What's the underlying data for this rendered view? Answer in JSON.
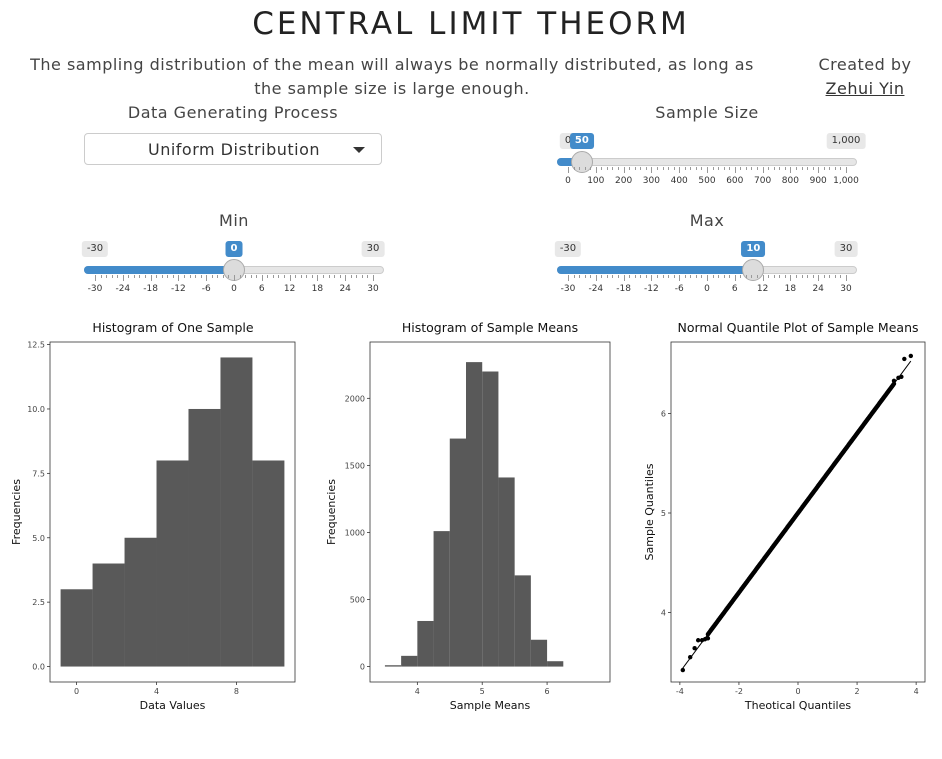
{
  "header": {
    "title": "CENTRAL LIMIT THEORM",
    "subtitle": "The sampling distribution of the mean will always be normally distributed, as long as the sample size is large enough.",
    "created_by": "Created by",
    "author": "Zehui Yin"
  },
  "controls": {
    "dgp_label": "Data Generating Process",
    "dgp_value": "Uniform Distribution",
    "sample_size": {
      "label": "Sample Size",
      "min": 0,
      "max": 1000,
      "value": 50,
      "min_label": "0",
      "max_label": "1,000",
      "value_label": "50",
      "ticks": [
        "0",
        "100",
        "200",
        "300",
        "400",
        "500",
        "600",
        "700",
        "800",
        "900",
        "1,000"
      ]
    },
    "min": {
      "label": "Min",
      "min": -30,
      "max": 30,
      "value": 0,
      "min_label": "-30",
      "max_label": "30",
      "value_label": "0",
      "ticks": [
        "-30",
        "-24",
        "-18",
        "-12",
        "-6",
        "0",
        "6",
        "12",
        "18",
        "24",
        "30"
      ]
    },
    "max": {
      "label": "Max",
      "min": -30,
      "max": 30,
      "value": 10,
      "min_label": "-30",
      "max_label": "30",
      "value_label": "10",
      "ticks": [
        "-30",
        "-24",
        "-18",
        "-12",
        "-6",
        "0",
        "6",
        "12",
        "18",
        "24",
        "30"
      ]
    }
  },
  "chart_data": [
    {
      "type": "bar",
      "title": "Histogram of One Sample",
      "xlabel": "Data Values",
      "ylabel": "Frequencies",
      "bin_edges": [
        -0.8,
        0.8,
        2.4,
        4.0,
        5.6,
        7.2,
        8.8,
        10.4
      ],
      "values": [
        3,
        4,
        5,
        8,
        10,
        12,
        8
      ],
      "xlim": [
        -1.33,
        10.93
      ],
      "ylim": [
        -0.6,
        12.6
      ],
      "xticks": [
        0,
        4,
        8
      ],
      "xtick_labels": [
        "0",
        "4",
        "8"
      ],
      "yticks": [
        0,
        2.5,
        5,
        7.5,
        10,
        12.5
      ],
      "ytick_labels": [
        "0.0",
        "2.5",
        "5.0",
        "7.5",
        "10.0",
        "12.5"
      ],
      "color": "#595959"
    },
    {
      "type": "bar",
      "title": "Histogram of Sample Means",
      "xlabel": "Sample Means",
      "ylabel": "Frequencies",
      "bin_edges": [
        3.5,
        3.75,
        4.0,
        4.25,
        4.5,
        4.75,
        5.0,
        5.25,
        5.5,
        5.75,
        6.0,
        6.25
      ],
      "values": [
        10,
        80,
        340,
        1010,
        1700,
        2270,
        2200,
        1410,
        680,
        200,
        40
      ],
      "xlim": [
        3.27,
        6.97
      ],
      "ylim": [
        -115,
        2420
      ],
      "xticks": [
        4,
        5,
        6
      ],
      "xtick_labels": [
        "4",
        "5",
        "6"
      ],
      "yticks": [
        0,
        500,
        1000,
        1500,
        2000
      ],
      "ytick_labels": [
        "0",
        "500",
        "1000",
        "1500",
        "2000"
      ],
      "color": "#595959"
    },
    {
      "type": "scatter",
      "title": "Normal Quantile Plot of Sample Means",
      "xlabel": "Theotical Quantiles",
      "ylabel": "Sample Quantiles",
      "xlim": [
        -4.3,
        4.3
      ],
      "ylim": [
        3.3,
        6.72
      ],
      "xticks": [
        -4,
        -2,
        0,
        2,
        4
      ],
      "xtick_labels": [
        "-4",
        "-2",
        "0",
        "2",
        "4"
      ],
      "yticks": [
        4,
        5,
        6
      ],
      "ytick_labels": [
        "4",
        "5",
        "6"
      ],
      "intercept": 5.0,
      "slope": 0.4,
      "points": [
        [
          -3.9,
          3.42
        ],
        [
          -3.65,
          3.55
        ],
        [
          -3.5,
          3.64
        ],
        [
          -3.38,
          3.72
        ],
        [
          -3.25,
          3.72
        ],
        [
          -3.15,
          3.73
        ],
        [
          -3.05,
          3.74
        ],
        [
          3.25,
          6.33
        ],
        [
          3.4,
          6.36
        ],
        [
          3.5,
          6.37
        ],
        [
          3.6,
          6.55
        ],
        [
          3.82,
          6.58
        ]
      ],
      "color": "#000000"
    }
  ]
}
